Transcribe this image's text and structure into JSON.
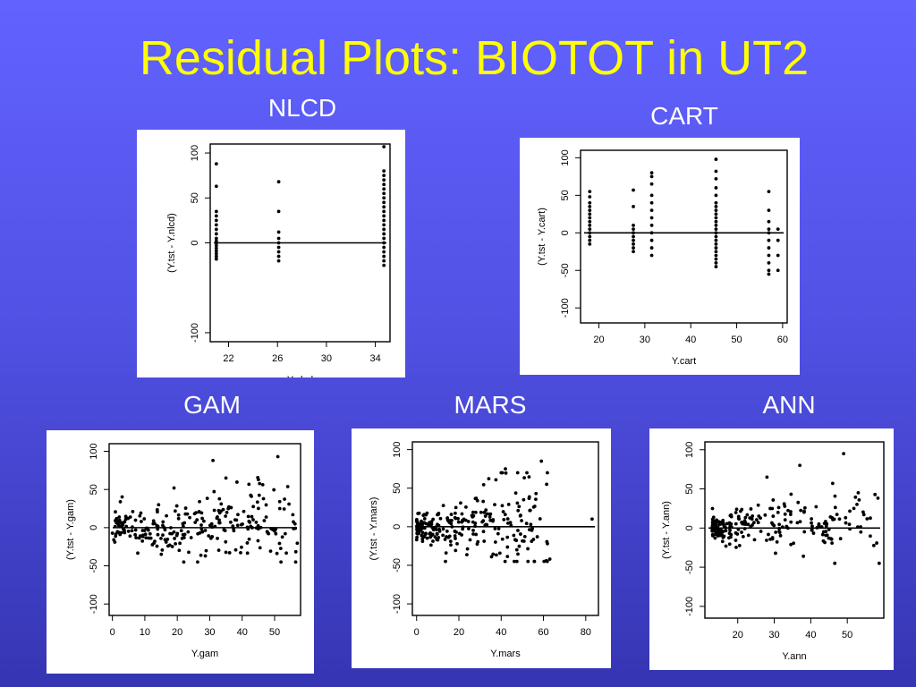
{
  "slide": {
    "title": "Residual Plots: BIOTOT in UT2"
  },
  "colors": {
    "background_top": "#6262ff",
    "background_bottom": "#3535b3",
    "title": "#ffff00",
    "caption": "#ffffff",
    "panel": "#ffffff",
    "points": "#000000"
  },
  "chart_data": [
    {
      "id": "nlcd",
      "type": "scatter",
      "title": "NLCD",
      "xlabel": "Y.nlcd",
      "ylabel": "(Y.tst - Y.nlcd)",
      "xlim": [
        20.5,
        35.2
      ],
      "ylim": [
        -110,
        110
      ],
      "xticks": [
        22,
        26,
        30,
        34
      ],
      "yticks": [
        -100,
        0,
        50,
        100
      ],
      "hline": 0,
      "series": [
        {
          "x": 21.0,
          "y": [
            88,
            63,
            35,
            30,
            25,
            20,
            15,
            10,
            5,
            2,
            0,
            -3,
            -6,
            -9,
            -12,
            -15,
            -18
          ]
        },
        {
          "x": 26.1,
          "y": [
            68,
            35,
            12,
            5,
            0,
            -5,
            -10,
            -15,
            -20
          ]
        },
        {
          "x": 34.7,
          "y": [
            107,
            80,
            75,
            70,
            65,
            60,
            55,
            50,
            45,
            40,
            35,
            30,
            25,
            20,
            15,
            10,
            5,
            0,
            -5,
            -10,
            -15,
            -20,
            -25
          ]
        }
      ]
    },
    {
      "id": "cart",
      "type": "scatter",
      "title": "CART",
      "xlabel": "Y.cart",
      "ylabel": "(Y.tst - Y.cart)",
      "xlim": [
        16,
        61
      ],
      "ylim": [
        -120,
        110
      ],
      "xticks": [
        20,
        30,
        40,
        50,
        60
      ],
      "yticks": [
        -100,
        -50,
        0,
        50,
        100
      ],
      "hline": 0,
      "series": [
        {
          "x": 18,
          "y": [
            55,
            48,
            40,
            35,
            30,
            25,
            20,
            15,
            10,
            5,
            0,
            -5,
            -10,
            -15
          ]
        },
        {
          "x": 27.5,
          "y": [
            57,
            35,
            10,
            5,
            0,
            -5,
            -10,
            -15,
            -20,
            -25
          ]
        },
        {
          "x": 31.5,
          "y": [
            80,
            75,
            65,
            50,
            40,
            30,
            20,
            10,
            0,
            -10,
            -20,
            -30
          ]
        },
        {
          "x": 45.5,
          "y": [
            98,
            82,
            72,
            60,
            50,
            40,
            35,
            30,
            25,
            20,
            15,
            10,
            5,
            0,
            -5,
            -10,
            -15,
            -20,
            -25,
            -30,
            -35,
            -40,
            -45
          ]
        },
        {
          "x": 57,
          "y": [
            55,
            30,
            15,
            5,
            0,
            -10,
            -20,
            -30,
            -40,
            -50,
            -55
          ]
        },
        {
          "x": 59,
          "y": [
            5,
            -10,
            -30,
            -50
          ]
        }
      ]
    },
    {
      "id": "gam",
      "type": "scatter",
      "title": "GAM",
      "xlabel": "Y.gam",
      "ylabel": "(Y.tst - Y.gam)",
      "xlim": [
        -1,
        58
      ],
      "ylim": [
        -115,
        110
      ],
      "xticks": [
        0,
        10,
        20,
        30,
        40,
        50
      ],
      "yticks": [
        -100,
        -50,
        0,
        50,
        100
      ],
      "hline": 0,
      "n_points": 260,
      "seed": 11,
      "outliers": [
        [
          31,
          88
        ],
        [
          51,
          93
        ],
        [
          35,
          65
        ],
        [
          45,
          63
        ],
        [
          19,
          52
        ]
      ],
      "points_model": {
        "x_range": [
          0,
          57
        ],
        "x_skew": 1.1,
        "spread_base": 10,
        "spread_slope": 0.72,
        "mean_trend": 0.05
      }
    },
    {
      "id": "mars",
      "type": "scatter",
      "title": "MARS",
      "xlabel": "Y.mars",
      "ylabel": "(Y.tst - Y.mars)",
      "xlim": [
        -2,
        86
      ],
      "ylim": [
        -115,
        110
      ],
      "xticks": [
        0,
        20,
        40,
        60,
        80
      ],
      "yticks": [
        -100,
        -50,
        0,
        50,
        100
      ],
      "hline": 0,
      "n_points": 260,
      "seed": 23,
      "outliers": [
        [
          59,
          85
        ],
        [
          83,
          10
        ],
        [
          42,
          75
        ],
        [
          63,
          -42
        ],
        [
          40,
          70
        ]
      ],
      "points_model": {
        "x_range": [
          0,
          62
        ],
        "x_skew": 1.6,
        "spread_base": 8,
        "spread_slope": 0.75,
        "mean_trend": 0.1
      }
    },
    {
      "id": "ann",
      "type": "scatter",
      "title": "ANN",
      "xlabel": "Y.ann",
      "ylabel": "(Y.tst - Y.ann)",
      "xlim": [
        11,
        60
      ],
      "ylim": [
        -115,
        110
      ],
      "xticks": [
        20,
        30,
        40,
        50
      ],
      "yticks": [
        -100,
        -50,
        0,
        50,
        100
      ],
      "hline": 0,
      "n_points": 240,
      "seed": 37,
      "outliers": [
        [
          49,
          95
        ],
        [
          28,
          65
        ],
        [
          37,
          80
        ],
        [
          46,
          57
        ],
        [
          53,
          45
        ]
      ],
      "points_model": {
        "x_range": [
          13,
          59
        ],
        "x_skew": 2.2,
        "spread_base": 8,
        "spread_slope": 0.7,
        "mean_trend": 0.05
      }
    }
  ]
}
